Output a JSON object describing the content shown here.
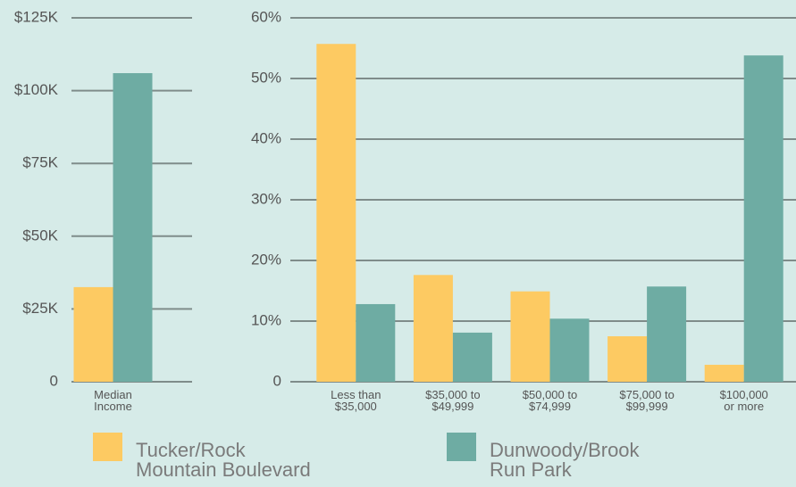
{
  "chart_data": [
    {
      "type": "bar",
      "categories": [
        "Median\nIncome"
      ],
      "series": [
        {
          "values": [
            32500
          ]
        },
        {
          "values": [
            106000
          ]
        }
      ],
      "ylim": [
        0,
        125000
      ],
      "yticks": [
        0,
        {
          "value": 25000,
          "label": "$25K"
        },
        {
          "value": 50000,
          "label": "$50K"
        },
        {
          "value": 75000,
          "label": "$75K"
        },
        {
          "value": 100000,
          "label": "$100K"
        },
        {
          "value": 125000,
          "label": "$125K"
        }
      ],
      "grid": true
    },
    {
      "type": "bar",
      "categories": [
        "Less than\n$35,000",
        "$35,000 to\n$49,999",
        "$50,000 to\n$74,999",
        "$75,000 to\n$99,999",
        "$100,000\nor more"
      ],
      "series": [
        {
          "values": [
            55.7,
            17.6,
            14.9,
            7.5,
            2.8
          ]
        },
        {
          "values": [
            12.8,
            8.1,
            10.4,
            15.7,
            53.8
          ]
        }
      ],
      "ylim": [
        0,
        60
      ],
      "yticks": [
        0,
        {
          "value": 10,
          "label": "10%"
        },
        {
          "value": 20,
          "label": "20%"
        },
        {
          "value": 30,
          "label": "30%"
        },
        {
          "value": 40,
          "label": "40%"
        },
        {
          "value": 50,
          "label": "50%"
        },
        {
          "value": 60,
          "label": "60%"
        }
      ],
      "grid": true
    }
  ],
  "legend": [
    {
      "name": "Tucker/Rock\nMountain Boulevard",
      "color": "#fdca62"
    },
    {
      "name": "Dunwoody/Brook\nRun Park",
      "color": "#6eaca3"
    }
  ]
}
